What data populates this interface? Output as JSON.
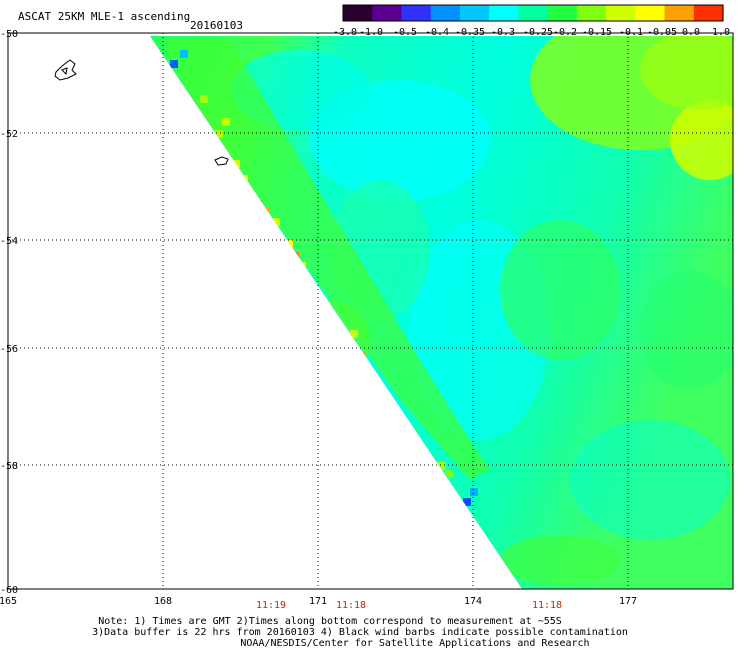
{
  "header": {
    "title": "ASCAT 25KM MLE-1 ascending",
    "date": "20160103"
  },
  "colorbar": {
    "labels": [
      "-3.0",
      "-1.0",
      "-0.5",
      "-0.4",
      "-0.35",
      "-0.3",
      "-0.25",
      "-0.2",
      "-0.15",
      "-0.1",
      "-0.05",
      "0.0",
      "1.0"
    ],
    "colors": [
      "#2a0030",
      "#5a0090",
      "#3030ff",
      "#0090ff",
      "#00c8ff",
      "#00ffff",
      "#00ffa0",
      "#20ff40",
      "#80ff10",
      "#d0ff00",
      "#ffff00",
      "#ffa000",
      "#ff3000"
    ]
  },
  "map": {
    "lat_ticks": [
      "-50",
      "-52",
      "-54",
      "-56",
      "-58",
      "-60"
    ],
    "lon_ticks": [
      "165",
      "168",
      "171",
      "174",
      "177"
    ],
    "time_labels": [
      "11:19",
      "11:18",
      "11:18"
    ],
    "time_color": "#cc2200"
  },
  "notes": {
    "line1": "Note: 1) Times are GMT 2)Times along bottom correspond to measurement at ~55S",
    "line2": "3)Data buffer is 22 hrs from 20160103 4) Black wind barbs indicate possible contamination",
    "line3": "NOAA/NESDIS/Center for Satellite Applications and Research"
  }
}
